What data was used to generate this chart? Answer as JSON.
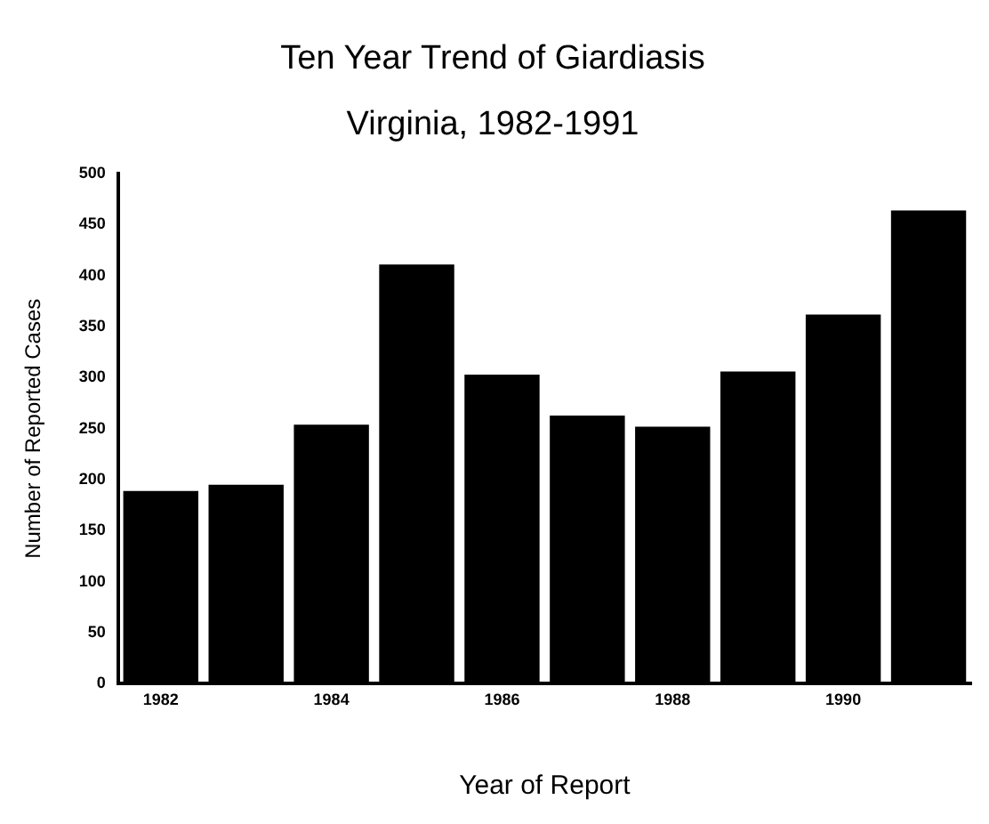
{
  "chart_data": {
    "type": "bar",
    "title": "Ten Year Trend of Giardiasis",
    "subtitle": "Virginia, 1982-1991",
    "xlabel": "Year of Report",
    "ylabel": "Number of Reported Cases",
    "categories": [
      "1982",
      null,
      "1984",
      null,
      "1986",
      null,
      "1988",
      null,
      "1990",
      null
    ],
    "values": [
      189,
      195,
      254,
      411,
      303,
      263,
      252,
      306,
      362,
      464
    ],
    "color": "#000000",
    "ylim": [
      0,
      500
    ],
    "yticks": [
      0,
      50,
      100,
      150,
      200,
      250,
      300,
      350,
      400,
      450,
      500
    ],
    "grid": false,
    "legend": false
  }
}
